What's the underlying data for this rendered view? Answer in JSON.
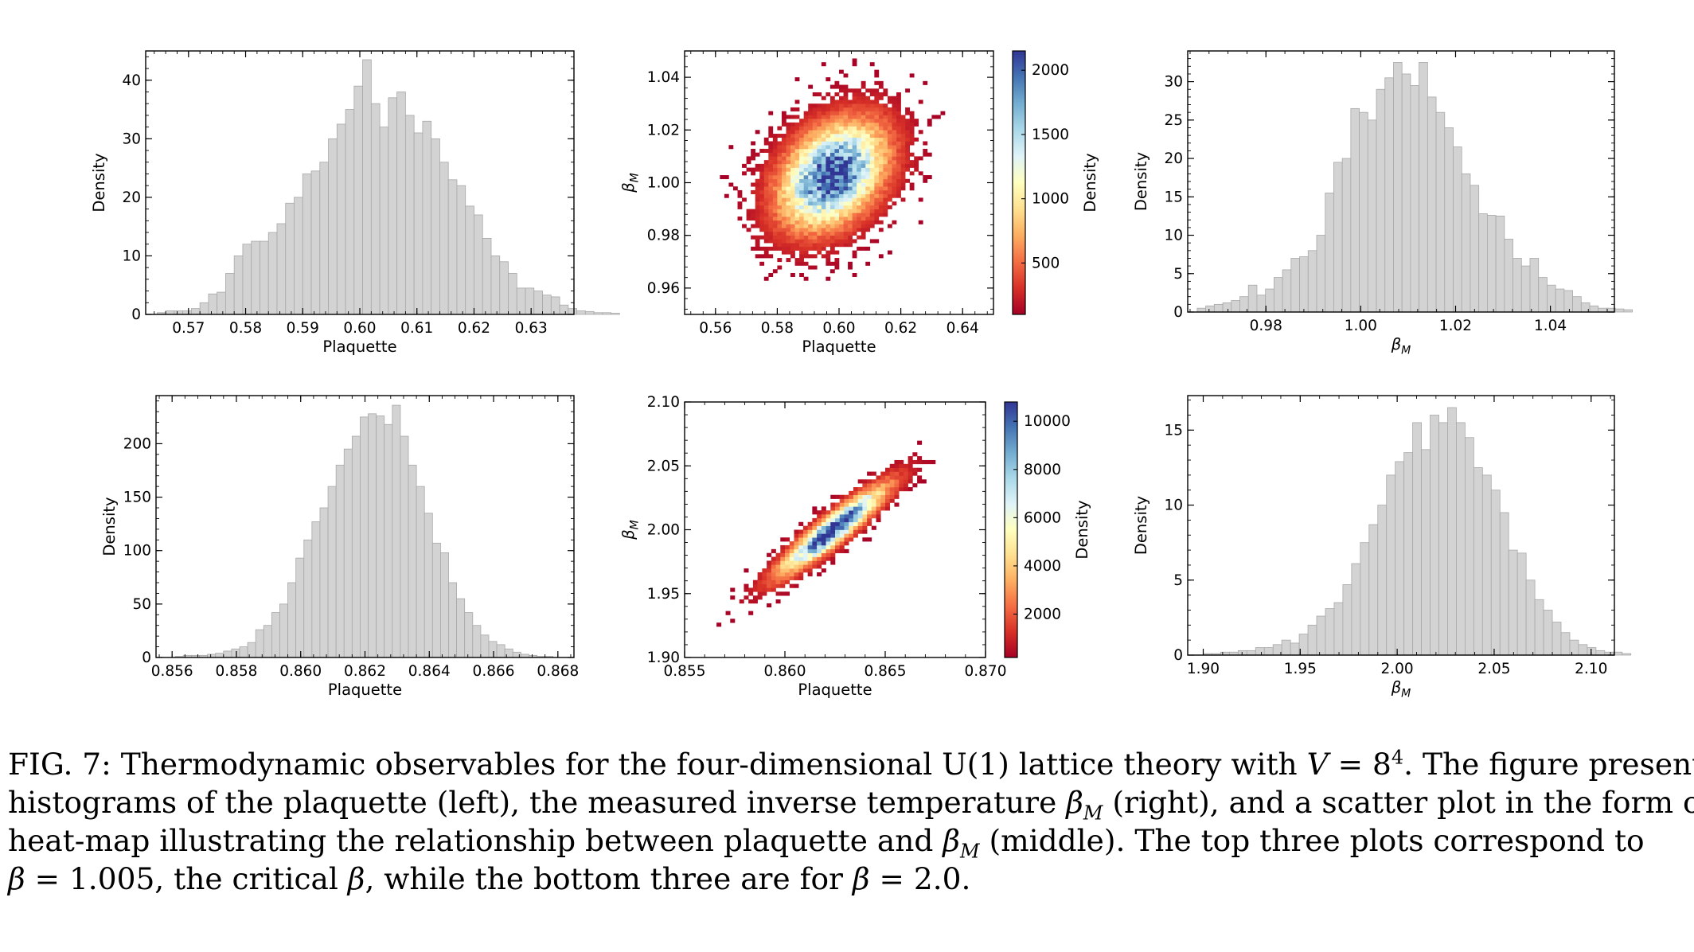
{
  "chart_data": [
    {
      "id": "top-plaquette",
      "type": "bar",
      "xlabel": "Plaquette",
      "ylabel": "Density",
      "xlim": [
        0.5625,
        0.6375
      ],
      "ylim": [
        0,
        45
      ],
      "xticks": [
        0.57,
        0.58,
        0.59,
        0.6,
        0.61,
        0.62,
        0.63
      ],
      "xtick_labels": [
        "0.57",
        "0.58",
        "0.59",
        "0.60",
        "0.61",
        "0.62",
        "0.63"
      ],
      "yticks": [
        0,
        10,
        20,
        30,
        40
      ],
      "ytick_labels": [
        "0",
        "10",
        "20",
        "30",
        "40"
      ],
      "bin_start": 0.5645,
      "bin_width": 0.0015,
      "values": [
        0.3,
        0.6,
        0.6,
        0.6,
        1,
        2,
        3.5,
        3.8,
        7,
        10,
        12,
        12.5,
        12.5,
        14,
        15.5,
        19,
        20,
        24,
        24.5,
        26,
        30,
        32.5,
        35,
        39,
        43.5,
        36,
        32,
        37,
        38,
        34,
        31,
        33,
        30,
        26,
        23,
        22,
        18.5,
        17,
        13,
        10,
        9,
        7,
        4.5,
        4.5,
        4,
        3.3,
        3,
        1.6,
        1,
        0.6,
        0.5,
        0.3,
        0.3,
        0.2
      ]
    },
    {
      "id": "top-heatmap",
      "type": "heatmap",
      "xlabel": "Plaquette",
      "ylabel": "β_M",
      "xlim": [
        0.55,
        0.65
      ],
      "ylim": [
        0.95,
        1.05
      ],
      "xticks": [
        0.56,
        0.58,
        0.6,
        0.62,
        0.64
      ],
      "xtick_labels": [
        "0.56",
        "0.58",
        "0.60",
        "0.62",
        "0.64"
      ],
      "yticks": [
        0.96,
        0.98,
        1.0,
        1.02,
        1.04
      ],
      "ytick_labels": [
        "0.96",
        "0.98",
        "1.00",
        "1.02",
        "1.04"
      ],
      "center": [
        0.598,
        1.003
      ],
      "spread": [
        0.011,
        0.013
      ],
      "correlation": 0.35,
      "cells": 70,
      "colorbar_label": "Density",
      "colorbar_range": [
        100,
        2150
      ],
      "colorbar_ticks": [
        500,
        1000,
        1500,
        2000
      ],
      "colorbar_tick_labels": [
        "500",
        "1000",
        "1500",
        "2000"
      ]
    },
    {
      "id": "top-beta",
      "type": "bar",
      "xlabel": "β_M",
      "ylabel": "Density",
      "xlim": [
        0.9635,
        1.0535
      ],
      "ylim": [
        0,
        34
      ],
      "xticks": [
        0.98,
        1.0,
        1.02,
        1.04
      ],
      "xtick_labels": [
        "0.98",
        "1.00",
        "1.02",
        "1.04"
      ],
      "yticks": [
        0,
        5,
        10,
        15,
        20,
        25,
        30
      ],
      "ytick_labels": [
        "0",
        "5",
        "10",
        "15",
        "20",
        "25",
        "30"
      ],
      "bin_start": 0.9655,
      "bin_width": 0.0018,
      "values": [
        0.5,
        0.8,
        1,
        1.2,
        1.5,
        2,
        3.5,
        2.2,
        3,
        4.5,
        5.5,
        7,
        7.2,
        8,
        10,
        15.5,
        19.5,
        20,
        26.5,
        26,
        25,
        29,
        30.5,
        32.5,
        31,
        29.5,
        32.5,
        28,
        26,
        24,
        21.5,
        18,
        16.5,
        12.8,
        12.6,
        12.5,
        9.5,
        7,
        6,
        7,
        4.5,
        3.5,
        3,
        2.8,
        2,
        1.2,
        0.8,
        0.5,
        0.5,
        0.4,
        0.3
      ]
    },
    {
      "id": "bottom-plaquette",
      "type": "bar",
      "xlabel": "Plaquette",
      "ylabel": "Density",
      "xlim": [
        0.8555,
        0.8685
      ],
      "ylim": [
        0,
        245
      ],
      "xticks": [
        0.856,
        0.858,
        0.86,
        0.862,
        0.864,
        0.866,
        0.868
      ],
      "xtick_labels": [
        "0.856",
        "0.858",
        "0.860",
        "0.862",
        "0.864",
        "0.866",
        "0.868"
      ],
      "yticks": [
        0,
        50,
        100,
        150,
        200
      ],
      "ytick_labels": [
        "0",
        "50",
        "100",
        "150",
        "200"
      ],
      "bin_start": 0.8561,
      "bin_width": 0.00025,
      "values": [
        1,
        2,
        2,
        2,
        3,
        4,
        6,
        8,
        10,
        14,
        26,
        30,
        42,
        50,
        70,
        93,
        110,
        127,
        140,
        160,
        180,
        195,
        207,
        225,
        228,
        226,
        218,
        236,
        207,
        180,
        160,
        135,
        107,
        98,
        70,
        55,
        42,
        30,
        21,
        15,
        12,
        8,
        5,
        3,
        2,
        1,
        1
      ]
    },
    {
      "id": "bottom-heatmap",
      "type": "heatmap",
      "xlabel": "Plaquette",
      "ylabel": "β_M",
      "xlim": [
        0.855,
        0.87
      ],
      "ylim": [
        1.9,
        2.1
      ],
      "xticks": [
        0.855,
        0.86,
        0.865,
        0.87
      ],
      "xtick_labels": [
        "0.855",
        "0.860",
        "0.865",
        "0.870"
      ],
      "yticks": [
        1.9,
        1.95,
        2.0,
        2.05,
        2.1
      ],
      "ytick_labels": [
        "1.90",
        "1.95",
        "2.00",
        "2.05",
        "2.10"
      ],
      "center": [
        0.8624,
        2.0
      ],
      "spread": [
        0.0017,
        0.022
      ],
      "correlation": 0.92,
      "cells": 66,
      "colorbar_label": "Density",
      "colorbar_range": [
        200,
        10800
      ],
      "colorbar_ticks": [
        2000,
        4000,
        6000,
        8000,
        10000
      ],
      "colorbar_tick_labels": [
        "2000",
        "4000",
        "6000",
        "8000",
        "10000"
      ]
    },
    {
      "id": "bottom-beta",
      "type": "bar",
      "xlabel": "β_M",
      "ylabel": "Density",
      "xlim": [
        1.892,
        2.112
      ],
      "ylim": [
        0,
        17.3
      ],
      "xticks": [
        1.9,
        1.95,
        2.0,
        2.05,
        2.1
      ],
      "xtick_labels": [
        "1.90",
        "1.95",
        "2.00",
        "2.05",
        "2.10"
      ],
      "yticks": [
        0,
        5,
        10,
        15
      ],
      "ytick_labels": [
        "0",
        "5",
        "10",
        "15"
      ],
      "bin_start": 1.9,
      "bin_width": 0.0045,
      "values": [
        0.1,
        0.1,
        0.2,
        0.2,
        0.3,
        0.3,
        0.5,
        0.5,
        0.7,
        1,
        0.8,
        1.4,
        2,
        2.6,
        3.1,
        3.5,
        4.7,
        6.1,
        7.5,
        8.7,
        10,
        12,
        12.9,
        13.5,
        15.5,
        13.7,
        16,
        15.5,
        16.5,
        15.5,
        14.5,
        12.5,
        12,
        11,
        9.5,
        7,
        6.8,
        5,
        3.7,
        3,
        2.2,
        1.5,
        1,
        0.7,
        0.5,
        0.3,
        0.2,
        0.2,
        0.1
      ]
    }
  ],
  "caption": {
    "line1": [
      "FIG. 7: Thermodynamic observables for the four-dimensional U(1) lattice theory with ",
      "V",
      " = 8",
      "4",
      ". The figure presents"
    ],
    "line2": [
      "histograms of the plaquette (left), the measured inverse temperature ",
      "β",
      "M",
      " (right), and a scatter plot in the form of a"
    ],
    "line3": [
      "heat-map illustrating the relationship between plaquette and ",
      "β",
      "M",
      " (middle). The top three plots correspond to"
    ],
    "line4": [
      "β",
      " = 1.005, the critical ",
      "β",
      ", while the bottom three are for ",
      "β",
      " = 2.0."
    ]
  }
}
